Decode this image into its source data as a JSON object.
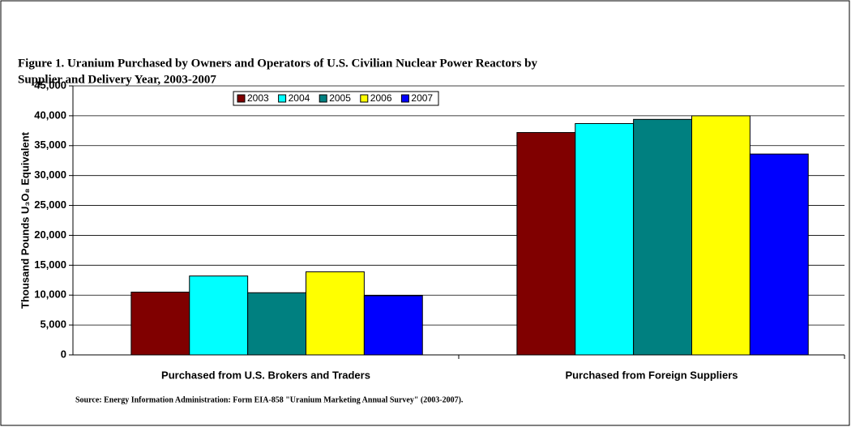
{
  "chart_data": {
    "type": "bar",
    "title": [
      "Figure 1.  Uranium Purchased by Owners and Operators of U.S. Civilian Nuclear Power Reactors by",
      "Supplier and Delivery Year, 2003-2007"
    ],
    "ylabel": "Thousand Pounds U₃O₈ Equivalent",
    "source": "Source:  Energy Information Administration: Form EIA-858 \"Uranium Marketing Annual Survey\"  (2003-2007).",
    "categories": [
      "Purchased from U.S. Brokers and Traders",
      "Purchased from Foreign Suppliers"
    ],
    "series": [
      {
        "name": "2003",
        "color": "#800000",
        "values": [
          10500,
          37200
        ]
      },
      {
        "name": "2004",
        "color": "#00ffff",
        "values": [
          13200,
          38700
        ]
      },
      {
        "name": "2005",
        "color": "#008080",
        "values": [
          10400,
          39400
        ]
      },
      {
        "name": "2006",
        "color": "#ffff00",
        "values": [
          13900,
          40000
        ]
      },
      {
        "name": "2007",
        "color": "#0000ff",
        "values": [
          9900,
          33600
        ]
      }
    ],
    "ylim": [
      0,
      45000
    ],
    "yticks": [
      0,
      {
        "value": 5000,
        "label": "5,000"
      },
      {
        "value": 10000,
        "label": "10,000"
      },
      {
        "value": 15000,
        "label": "15,000"
      },
      {
        "value": 20000,
        "label": "20,000"
      },
      {
        "value": 25000,
        "label": "25,000"
      },
      {
        "value": 30000,
        "label": "30,000"
      },
      {
        "value": 35000,
        "label": "35,000"
      },
      {
        "value": 40000,
        "label": "40,000"
      },
      {
        "value": 45000,
        "label": "45,000"
      }
    ],
    "grid": true,
    "legend": "top"
  }
}
